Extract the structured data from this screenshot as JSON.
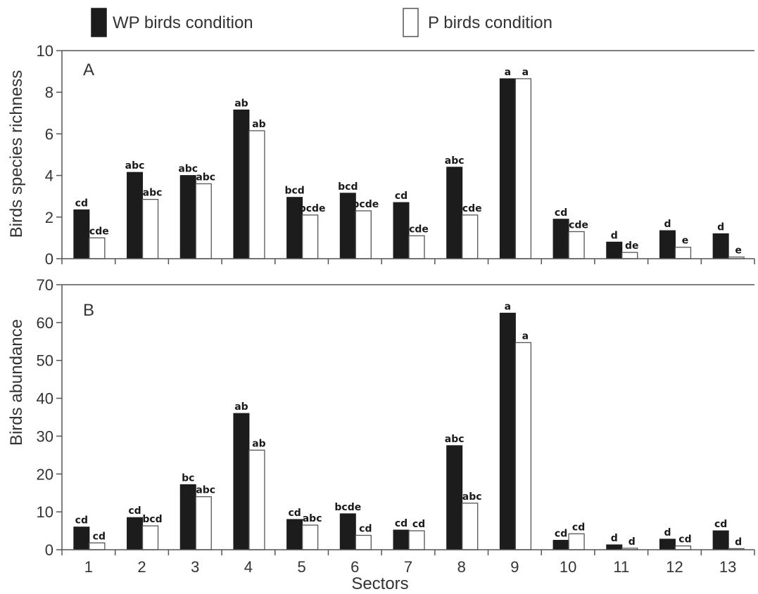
{
  "legend": {
    "wp_label": "WP birds condition",
    "p_label": "P birds condition"
  },
  "colors": {
    "wp": "#1c1c1c",
    "p": "#ffffff",
    "axis": "#555555",
    "text": "#333333"
  },
  "chart_data": [
    {
      "type": "bar",
      "panel_label": "A",
      "ylabel": "Birds species richness",
      "ylim": [
        0,
        10
      ],
      "yticks": [
        0,
        2,
        4,
        6,
        8,
        10
      ],
      "categories": [
        "1",
        "2",
        "3",
        "4",
        "5",
        "6",
        "7",
        "8",
        "9",
        "10",
        "11",
        "12",
        "13"
      ],
      "series": [
        {
          "name": "WP birds condition",
          "values": [
            2.35,
            4.15,
            4.0,
            7.15,
            2.95,
            3.15,
            2.7,
            4.4,
            8.65,
            1.9,
            0.8,
            1.35,
            1.2
          ],
          "letters": [
            "cd",
            "abc",
            "abc",
            "ab",
            "bcd",
            "bcd",
            "cd",
            "abc",
            "a",
            "cd",
            "d",
            "d",
            "d"
          ]
        },
        {
          "name": "P birds condition",
          "values": [
            1.0,
            2.85,
            3.6,
            6.15,
            2.1,
            2.3,
            1.1,
            2.1,
            8.65,
            1.3,
            0.3,
            0.55,
            0.08
          ],
          "letters": [
            "cde",
            "abc",
            "abc",
            "ab",
            "bcde",
            "bcde",
            "cde",
            "cde",
            "a",
            "cde",
            "de",
            "e",
            "e"
          ]
        }
      ]
    },
    {
      "type": "bar",
      "panel_label": "B",
      "ylabel": "Birds abundance",
      "xlabel": "Sectors",
      "ylim": [
        0,
        70
      ],
      "yticks": [
        0,
        10,
        20,
        30,
        40,
        50,
        60,
        70
      ],
      "categories": [
        "1",
        "2",
        "3",
        "4",
        "5",
        "6",
        "7",
        "8",
        "9",
        "10",
        "11",
        "12",
        "13"
      ],
      "series": [
        {
          "name": "WP birds condition",
          "values": [
            6.0,
            8.5,
            17.2,
            36.0,
            8.0,
            9.5,
            5.2,
            27.5,
            62.5,
            2.5,
            1.3,
            2.8,
            5.0
          ],
          "letters": [
            "cd",
            "cd",
            "bc",
            "ab",
            "cd",
            "bcde",
            "cd",
            "abc",
            "a",
            "cd",
            "d",
            "d",
            "cd"
          ]
        },
        {
          "name": "P birds condition",
          "values": [
            1.8,
            6.3,
            14.0,
            26.3,
            6.5,
            3.8,
            5.0,
            12.3,
            54.7,
            4.2,
            0.4,
            1.0,
            0.3
          ],
          "letters": [
            "cd",
            "bcd",
            "abc",
            "ab",
            "abc",
            "cd",
            "cd",
            "abc",
            "a",
            "cd",
            "d",
            "cd",
            "d"
          ]
        }
      ]
    }
  ]
}
